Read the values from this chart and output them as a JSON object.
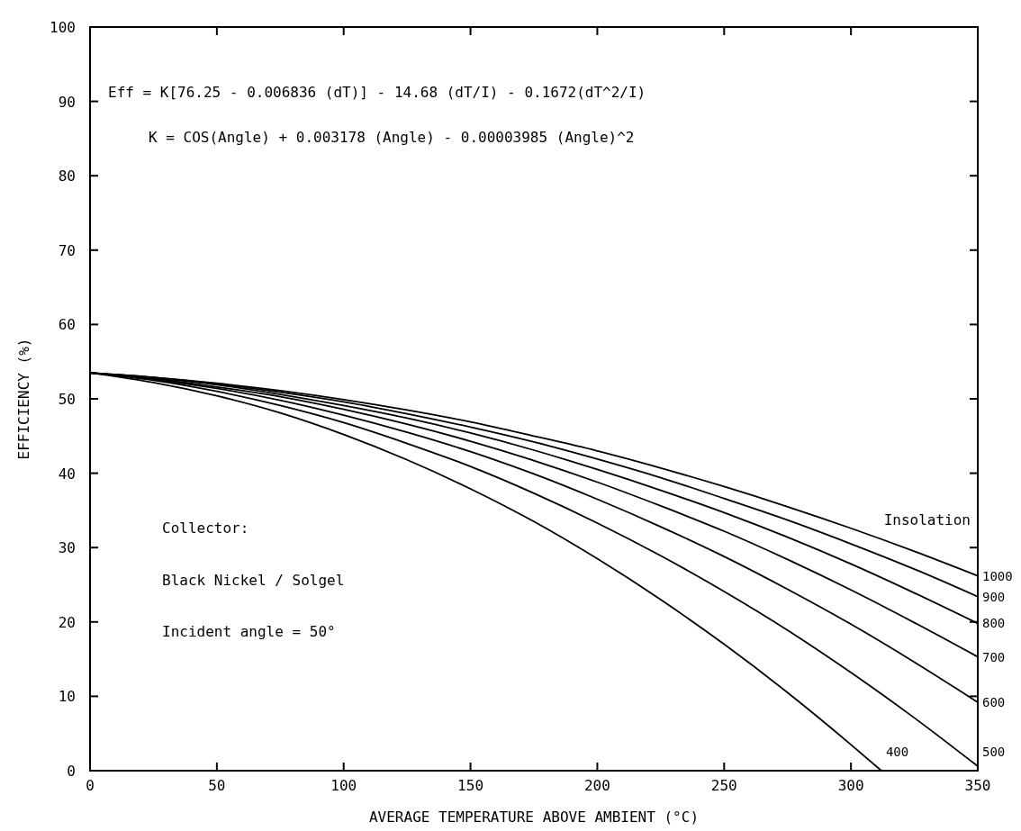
{
  "chart_data": {
    "type": "line",
    "xlabel": "AVERAGE TEMPERATURE ABOVE AMBIENT   (°C)",
    "ylabel": "EFFICIENCY   (%)",
    "legend_title": "Insolation",
    "x": [
      0,
      25,
      50,
      75,
      100,
      125,
      150,
      175,
      200,
      225,
      250,
      275,
      300,
      325,
      350
    ],
    "series": [
      {
        "name": "1000",
        "color": "#000000",
        "values": [
          53.5,
          52.9,
          52.1,
          51.1,
          49.9,
          48.5,
          46.9,
          45.0,
          43.0,
          40.7,
          38.2,
          35.5,
          32.6,
          29.5,
          26.2
        ]
      },
      {
        "name": "900",
        "color": "#000000",
        "values": [
          53.5,
          52.9,
          52.0,
          50.9,
          49.6,
          48.0,
          46.2,
          44.2,
          41.9,
          39.4,
          36.6,
          33.7,
          30.5,
          27.1,
          23.4
        ]
      },
      {
        "name": "800",
        "color": "#000000",
        "values": [
          53.5,
          52.8,
          51.9,
          50.6,
          49.1,
          47.4,
          45.4,
          43.1,
          40.5,
          37.7,
          34.7,
          31.4,
          27.8,
          23.9,
          19.8
        ]
      },
      {
        "name": "700",
        "color": "#000000",
        "values": [
          53.5,
          52.7,
          51.6,
          50.3,
          48.6,
          46.6,
          44.3,
          41.7,
          38.8,
          35.6,
          32.2,
          28.4,
          24.3,
          19.9,
          15.3
        ]
      },
      {
        "name": "600",
        "color": "#000000",
        "values": [
          53.5,
          52.6,
          51.4,
          49.8,
          47.8,
          45.5,
          42.9,
          39.9,
          36.5,
          32.8,
          28.8,
          24.4,
          19.7,
          14.6,
          9.2
        ]
      },
      {
        "name": "500",
        "color": "#000000",
        "values": [
          53.5,
          52.5,
          51.0,
          49.1,
          46.8,
          44.0,
          40.9,
          37.3,
          33.3,
          28.9,
          24.1,
          18.9,
          13.2,
          7.1,
          0.6
        ]
      },
      {
        "name": "400",
        "color": "#000000",
        "x": [
          0,
          25,
          50,
          75,
          100,
          125,
          150,
          175,
          200,
          225,
          250,
          275,
          300,
          312
        ],
        "values": [
          53.5,
          52.2,
          50.4,
          48.1,
          45.2,
          41.8,
          37.9,
          33.5,
          28.5,
          23.0,
          17.0,
          10.5,
          3.5,
          0
        ]
      }
    ],
    "annotations": [
      "Eff = K[76.25 - 0.006836 (dT)] - 14.68 (dT/I) - 0.1672(dT^2/I)",
      "K = COS(Angle) + 0.003178 (Angle) - 0.00003985 (Angle)^2",
      "Collector:",
      "Black Nickel / Solgel",
      "Incident angle = 50°"
    ],
    "xlim": [
      0,
      350
    ],
    "ylim": [
      0,
      100
    ],
    "xticks": [
      0,
      50,
      100,
      150,
      200,
      250,
      300,
      350
    ],
    "yticks": [
      0,
      10,
      20,
      30,
      40,
      50,
      60,
      70,
      80,
      90,
      100
    ],
    "grid": false,
    "legend": "right",
    "marker": "none",
    "line_style": "solid"
  }
}
